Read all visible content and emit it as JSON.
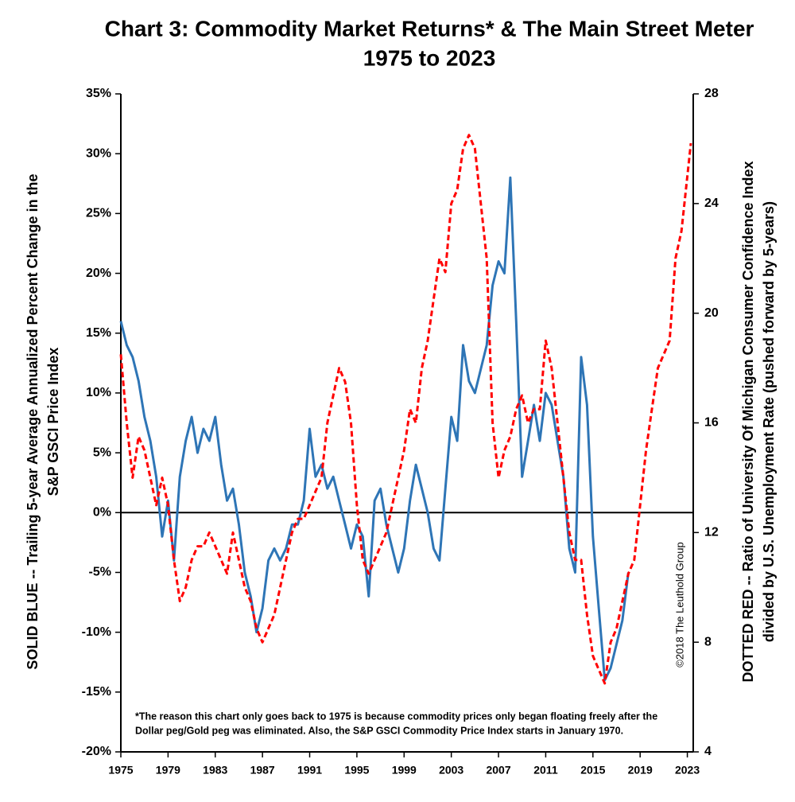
{
  "chart_data": {
    "type": "line",
    "title": [
      "Chart 3: Commodity Market Returns* & The Main Street Meter",
      "1975 to 2023"
    ],
    "ylabel": [
      "SOLID BLUE -- Trailing 5-year Average Annualized Percent Change in the",
      "S&P GSCI Price Index"
    ],
    "y2label": [
      "DOTTED RED -- Ratio of University Of Michigan Consumer Confidence Index",
      "divided by U.S. Unemployment Rate (pushed forward by 5-years)"
    ],
    "footnote": [
      "*The reason this chart only goes back to 1975 is because commodity prices only began floating freely after the",
      "Dollar peg/Gold peg was eliminated. Also, the S&P GSCI Commodity Price Index starts in January 1970."
    ],
    "copyright": "©2018 The Leuthold Group",
    "xlim": [
      1975,
      2023.5
    ],
    "xticks": [
      1975,
      1979,
      1983,
      1987,
      1991,
      1995,
      1999,
      2003,
      2007,
      2011,
      2015,
      2019,
      2023
    ],
    "ylim": [
      -20,
      35
    ],
    "yticks": [
      {
        "value": -20,
        "label": "-20%"
      },
      {
        "value": -15,
        "label": "-15%"
      },
      {
        "value": -10,
        "label": "-10%"
      },
      {
        "value": -5,
        "label": "-5%"
      },
      {
        "value": 0,
        "label": "0%"
      },
      {
        "value": 5,
        "label": "5%"
      },
      {
        "value": 10,
        "label": "10%"
      },
      {
        "value": 15,
        "label": "15%"
      },
      {
        "value": 20,
        "label": "20%"
      },
      {
        "value": 25,
        "label": "25%"
      },
      {
        "value": 30,
        "label": "30%"
      },
      {
        "value": 35,
        "label": "35%"
      }
    ],
    "y2lim": [
      4,
      28
    ],
    "y2ticks": [
      4,
      8,
      12,
      16,
      20,
      24,
      28
    ],
    "series": [
      {
        "name": "SOLID BLUE",
        "color": "#2e75b6",
        "style": "solid",
        "x": [
          1975,
          1975.5,
          1976,
          1976.5,
          1977,
          1977.5,
          1978,
          1978.5,
          1979,
          1979.5,
          1980,
          1980.5,
          1981,
          1981.5,
          1982,
          1982.5,
          1983,
          1983.5,
          1984,
          1984.5,
          1985,
          1985.5,
          1986,
          1986.5,
          1987,
          1987.5,
          1988,
          1988.5,
          1989,
          1989.5,
          1990,
          1990.5,
          1991,
          1991.5,
          1992,
          1992.5,
          1993,
          1993.5,
          1994,
          1994.5,
          1995,
          1995.5,
          1996,
          1996.5,
          1997,
          1997.5,
          1998,
          1998.5,
          1999,
          1999.5,
          2000,
          2000.5,
          2001,
          2001.5,
          2002,
          2002.5,
          2003,
          2003.5,
          2004,
          2004.5,
          2005,
          2005.5,
          2006,
          2006.5,
          2007,
          2007.5,
          2008,
          2008.5,
          2009,
          2009.5,
          2010,
          2010.5,
          2011,
          2011.5,
          2012,
          2012.5,
          2013,
          2013.5,
          2014,
          2014.5,
          2015,
          2015.5,
          2016,
          2016.5,
          2017,
          2017.5,
          2018
        ],
        "values": [
          16,
          14,
          13,
          11,
          8,
          6,
          3,
          -2,
          1,
          -4,
          3,
          6,
          8,
          5,
          7,
          6,
          8,
          4,
          1,
          2,
          -1,
          -5,
          -7,
          -10,
          -8,
          -4,
          -3,
          -4,
          -3,
          -1,
          -1,
          1,
          7,
          3,
          4,
          2,
          3,
          1,
          -1,
          -3,
          -1,
          -2,
          -7,
          1,
          2,
          -1,
          -3,
          -5,
          -3,
          1,
          4,
          2,
          0,
          -3,
          -4,
          2,
          8,
          6,
          14,
          11,
          10,
          12,
          14,
          19,
          21,
          20,
          28,
          16,
          3,
          6,
          9,
          6,
          10,
          9,
          6,
          3,
          -3,
          -5,
          13,
          9,
          -2,
          -8,
          -14,
          -13,
          -11,
          -9,
          -5
        ]
      },
      {
        "name": "DOTTED RED",
        "color": "#ff0000",
        "style": "dashed",
        "axis": "y2",
        "x": [
          1975,
          1975.5,
          1976,
          1976.5,
          1977,
          1977.5,
          1978,
          1978.5,
          1979,
          1979.5,
          1980,
          1980.5,
          1981,
          1981.5,
          1982,
          1982.5,
          1983,
          1983.5,
          1984,
          1984.5,
          1985,
          1985.5,
          1986,
          1986.5,
          1987,
          1987.5,
          1988,
          1988.5,
          1989,
          1989.5,
          1990,
          1990.5,
          1991,
          1991.5,
          1992,
          1992.5,
          1993,
          1993.5,
          1994,
          1994.5,
          1995,
          1995.5,
          1996,
          1996.5,
          1997,
          1997.5,
          1998,
          1998.5,
          1999,
          1999.5,
          2000,
          2000.5,
          2001,
          2001.5,
          2002,
          2002.5,
          2003,
          2003.5,
          2004,
          2004.5,
          2005,
          2005.5,
          2006,
          2006.5,
          2007,
          2007.5,
          2008,
          2008.5,
          2009,
          2009.5,
          2010,
          2010.5,
          2011,
          2011.5,
          2012,
          2012.5,
          2013,
          2013.5,
          2014,
          2014.5,
          2015,
          2015.5,
          2016,
          2016.5,
          2017,
          2017.5,
          2018,
          2018.5,
          2019,
          2019.5,
          2020,
          2020.5,
          2021,
          2021.5,
          2022,
          2022.5,
          2023,
          2023.3
        ],
        "values": [
          18.5,
          16,
          14,
          15.5,
          15,
          14,
          13,
          14,
          13,
          11,
          9.5,
          10,
          11,
          11.5,
          11.5,
          12,
          11.5,
          11,
          10.5,
          12,
          11,
          10,
          9.5,
          8.5,
          8,
          8.5,
          9,
          10,
          11,
          12,
          12.5,
          12.5,
          13,
          13.5,
          14,
          16,
          17,
          18,
          17.5,
          16,
          13,
          11,
          10.5,
          11,
          11.5,
          12,
          13,
          14,
          15,
          16.5,
          16,
          18,
          19,
          20.5,
          22,
          21.5,
          24,
          24.5,
          26,
          26.5,
          26,
          24,
          22,
          16,
          14,
          15,
          15.5,
          16.5,
          17,
          16,
          16.5,
          16.5,
          19,
          18,
          16,
          14,
          12,
          11,
          11,
          9,
          7.5,
          7,
          6.5,
          8,
          8.5,
          9.5,
          10.5,
          11,
          13,
          15,
          16.5,
          18,
          18.5,
          19,
          22,
          23,
          25,
          26.2
        ]
      }
    ]
  }
}
